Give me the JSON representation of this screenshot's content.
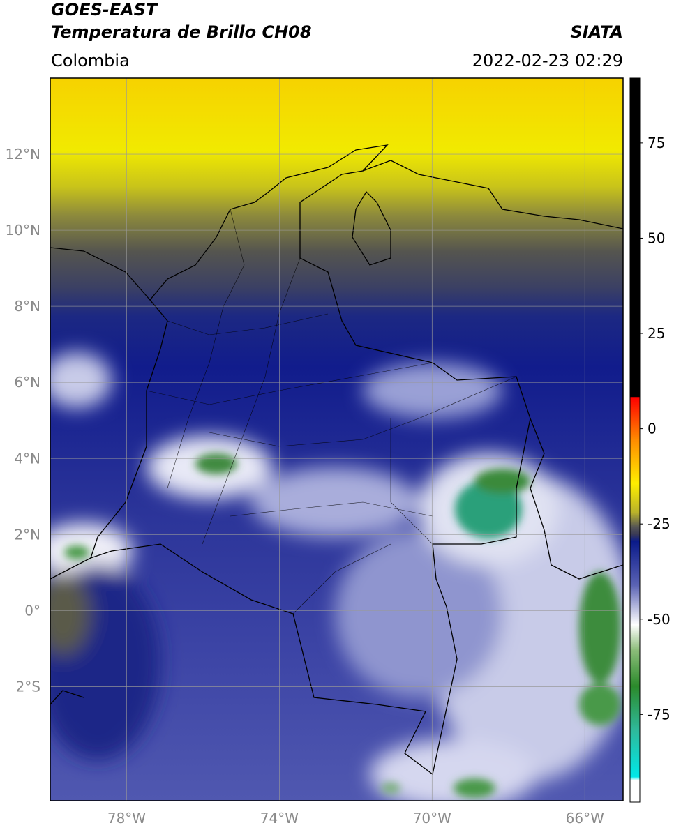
{
  "header": {
    "title": "GOES-EAST",
    "subtitle": "Temperatura de Brillo CH08",
    "source": "SIATA",
    "region": "Colombia",
    "timestamp": "2022-02-23 02:29"
  },
  "map": {
    "lat_range": [
      -5,
      14
    ],
    "lon_range": [
      -80,
      -65
    ],
    "lat_ticks": [
      {
        "value": 12,
        "label": "12°N"
      },
      {
        "value": 10,
        "label": "10°N"
      },
      {
        "value": 8,
        "label": "8°N"
      },
      {
        "value": 6,
        "label": "6°N"
      },
      {
        "value": 4,
        "label": "4°N"
      },
      {
        "value": 2,
        "label": "2°N"
      },
      {
        "value": 0,
        "label": "0°"
      },
      {
        "value": -2,
        "label": "2°S"
      }
    ],
    "lon_ticks": [
      {
        "value": -78,
        "label": "78°W"
      },
      {
        "value": -74,
        "label": "74°W"
      },
      {
        "value": -70,
        "label": "70°W"
      },
      {
        "value": -66,
        "label": "66°W"
      }
    ],
    "grid": true
  },
  "colorbar": {
    "range": [
      -98,
      92
    ],
    "ticks": [
      75,
      50,
      25,
      0,
      -25,
      -50,
      -75
    ]
  }
}
